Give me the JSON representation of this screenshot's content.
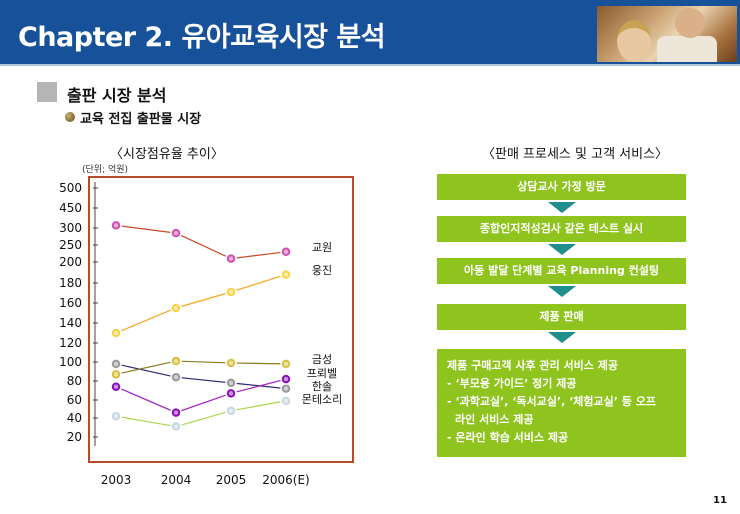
{
  "header": {
    "title": "Chapter 2.  유아교육시장 분석"
  },
  "section": {
    "title": "출판 시장 분석",
    "subtitle": "교육 전집 출판물 시장"
  },
  "left_caption": "〈시장점유율 추이〉",
  "right_caption": "〈판매 프로세스 및 고객 서비스〉",
  "unit_label": "(단위; 억원)",
  "chart_data": {
    "type": "line",
    "categories": [
      "2003",
      "2004",
      "2005",
      "2006(E)"
    ],
    "y_ticks": [
      "500",
      "450",
      "300",
      "250",
      "200",
      "180",
      "160",
      "140",
      "120",
      "100",
      "80",
      "60",
      "40",
      "20"
    ],
    "y_tick_values": [
      500,
      450,
      300,
      250,
      200,
      180,
      160,
      140,
      120,
      100,
      80,
      60,
      40,
      20
    ],
    "series": [
      {
        "name": "교원",
        "color": "#c84a28",
        "marker": "#d24fb0",
        "values": [
          320,
          285,
          210,
          230
        ]
      },
      {
        "name": "웅진",
        "color": "#f5a623",
        "marker": "#f7d34a",
        "values": [
          130,
          155,
          171,
          188
        ]
      },
      {
        "name": "금성",
        "color": "#2c2c7a",
        "marker": "#9a9a9a",
        "values": [
          98,
          84,
          78,
          72
        ]
      },
      {
        "name": "프뢰벨",
        "color": "#8a7a20",
        "marker": "#d8c040",
        "values": [
          87,
          101,
          99,
          98
        ]
      },
      {
        "name": "한솔",
        "color": "#a020c0",
        "marker": "#8b10b8",
        "values": [
          74,
          46,
          67,
          82
        ]
      },
      {
        "name": "몬테소리",
        "color": "#a8d84a",
        "marker": "#c8d8e0",
        "values": [
          42,
          31,
          48,
          59
        ]
      }
    ],
    "legend_placement": "right"
  },
  "process": {
    "steps": [
      "상담교사 가정 방문",
      "종합인지적성검사 같은  테스트 실시",
      "아동 발달 단계별 교육 Planning 컨설팅",
      "제품 판매"
    ],
    "final_lines": [
      "제품 구매고객 사후 관리 서비스 제공",
      "- ‘부모용 가이드’  정기 제공",
      "- ‘과학교실’, ‘독서교실’, ‘체험교실’   등 오프",
      "   라인 서비스 제공",
      "- 온라인 학습 서비스 제공"
    ]
  },
  "page_number": "11",
  "colors": {
    "header": "#16519a",
    "step": "#8fc41f",
    "arrow": "#1e8f8a",
    "frame": "#b74c2a"
  }
}
